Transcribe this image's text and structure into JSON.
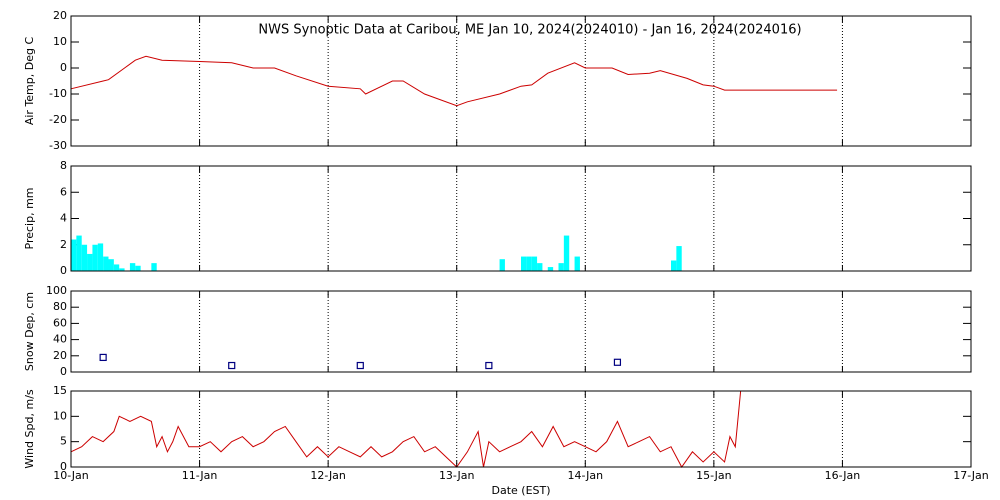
{
  "chart_data": [
    {
      "type": "line",
      "title": "NWS Synoptic Data at Caribou, ME   Jan 10, 2024(2024010) - Jan 16, 2024(2024016)",
      "ylabel": "Air Temp, Deg C",
      "color": "#cc0000",
      "x": [
        0,
        6,
        7,
        10,
        12,
        14,
        17,
        24,
        30,
        34,
        38,
        42,
        48,
        54,
        55,
        60,
        62,
        66,
        72,
        74,
        80,
        84,
        86,
        89,
        94,
        96,
        101,
        104,
        108,
        110,
        115,
        118,
        120,
        122,
        143
      ],
      "values": [
        -8,
        -5,
        -4.5,
        0,
        3,
        4.5,
        3,
        2.5,
        2,
        0,
        0,
        -3,
        -7,
        -8,
        -10,
        -5,
        -5,
        -10,
        -14.5,
        -13,
        -10,
        -7,
        -6.5,
        -2,
        2,
        0,
        0,
        -2.5,
        -2,
        -1,
        -4,
        -6.5,
        -7,
        -8.5,
        -8.5
      ],
      "xlim": [
        0,
        168
      ],
      "ylim": [
        -30,
        20
      ],
      "yticks": [
        -30,
        -20,
        -10,
        0,
        10,
        20
      ]
    },
    {
      "type": "bar",
      "ylabel": "Precip, mm",
      "color": "#00ffff",
      "x": [
        0,
        1,
        2,
        3,
        4,
        5,
        6,
        7,
        8,
        9,
        11,
        12,
        15,
        80,
        84,
        85,
        86,
        87,
        89,
        91,
        92,
        94,
        112,
        113
      ],
      "values": [
        2.4,
        2.7,
        2.0,
        1.3,
        2.0,
        2.1,
        1.1,
        0.9,
        0.5,
        0.2,
        0.6,
        0.4,
        0.6,
        0.9,
        1.1,
        1.1,
        1.1,
        0.6,
        0.3,
        0.6,
        2.7,
        1.1,
        0.8,
        1.9
      ],
      "xlim": [
        0,
        168
      ],
      "ylim": [
        0,
        8
      ],
      "yticks": [
        0,
        2,
        4,
        6,
        8
      ]
    },
    {
      "type": "scatter",
      "ylabel": "Snow Dep, cm",
      "color": "#000080",
      "x": [
        6,
        30,
        54,
        78,
        102
      ],
      "values": [
        18,
        8,
        8,
        8,
        12
      ],
      "xlim": [
        0,
        168
      ],
      "ylim": [
        0,
        100
      ],
      "yticks": [
        0,
        20,
        40,
        60,
        80,
        100
      ]
    },
    {
      "type": "line",
      "ylabel": "Wind Spd, m/s",
      "xlabel": "Date (EST)",
      "color": "#cc0000",
      "x": [
        0,
        2,
        4,
        6,
        8,
        9,
        11,
        13,
        15,
        16,
        17,
        18,
        19,
        20,
        22,
        24,
        26,
        28,
        30,
        32,
        34,
        36,
        38,
        40,
        42,
        44,
        46,
        48,
        50,
        52,
        54,
        56,
        58,
        60,
        62,
        64,
        66,
        68,
        70,
        72,
        74,
        76,
        77,
        78,
        80,
        82,
        84,
        86,
        88,
        90,
        92,
        94,
        96,
        98,
        100,
        102,
        104,
        106,
        108,
        110,
        112,
        114,
        116,
        118,
        120,
        122,
        123,
        124,
        125
      ],
      "values": [
        3,
        4,
        6,
        5,
        7,
        10,
        9,
        10,
        9,
        4,
        6,
        3,
        5,
        8,
        4,
        4,
        5,
        3,
        5,
        6,
        4,
        5,
        7,
        8,
        5,
        2,
        4,
        2,
        4,
        3,
        2,
        4,
        2,
        3,
        5,
        6,
        3,
        4,
        2,
        0,
        3,
        7,
        0,
        5,
        3,
        4,
        5,
        7,
        4,
        8,
        4,
        5,
        4,
        3,
        5,
        9,
        4,
        5,
        6,
        3,
        4,
        0,
        3,
        1,
        3,
        1,
        6,
        4,
        15
      ],
      "xlim": [
        0,
        168
      ],
      "ylim": [
        0,
        15
      ],
      "yticks": [
        0,
        5,
        10,
        15
      ],
      "xticks": [
        {
          "value": 0,
          "label": "10-Jan"
        },
        {
          "value": 24,
          "label": "11-Jan"
        },
        {
          "value": 48,
          "label": "12-Jan"
        },
        {
          "value": 72,
          "label": "13-Jan"
        },
        {
          "value": 96,
          "label": "14-Jan"
        },
        {
          "value": 120,
          "label": "15-Jan"
        },
        {
          "value": 144,
          "label": "16-Jan"
        },
        {
          "value": 168,
          "label": "17-Jan"
        }
      ]
    }
  ]
}
